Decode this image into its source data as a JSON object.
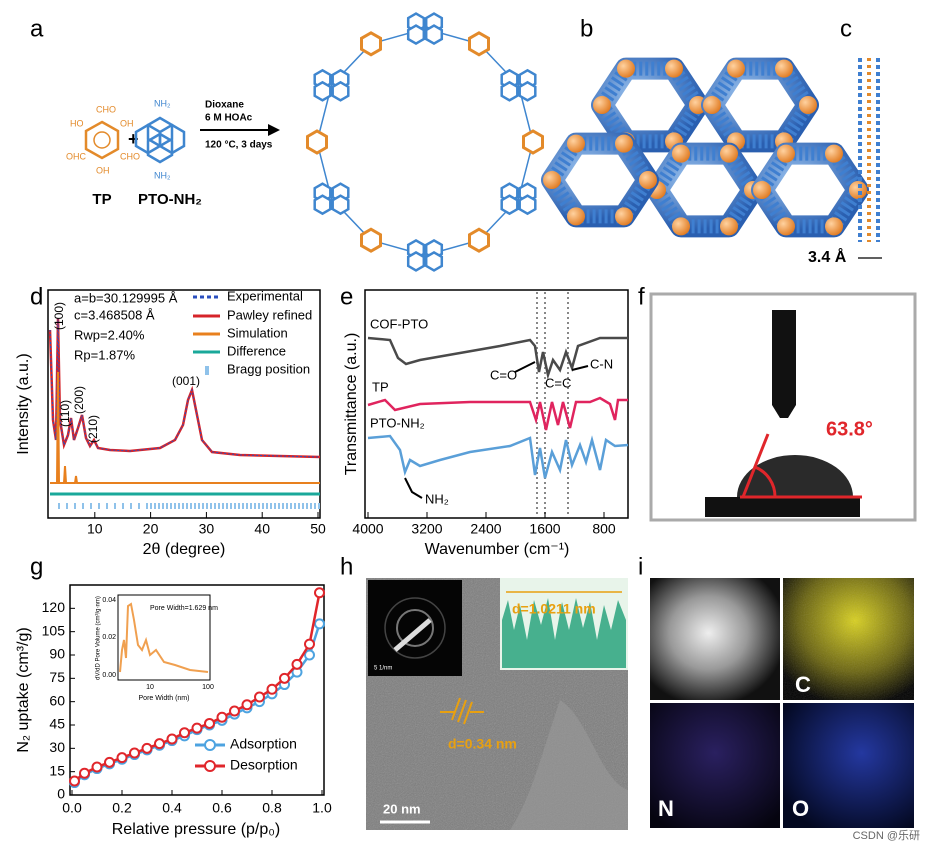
{
  "panel_labels": [
    "a",
    "b",
    "c",
    "d",
    "e",
    "f",
    "g",
    "h",
    "i"
  ],
  "a": {
    "reactants": [
      "TP",
      "PTO-NH₂"
    ],
    "plus": "+",
    "conditions": [
      "Dioxane",
      "6 M HOAc",
      "120 °C, 3 days"
    ],
    "tp_groups": [
      "CHO",
      "OH",
      "HO",
      "OHC",
      "CHO",
      "OH"
    ],
    "pto_groups": [
      "NH₂",
      "NH₂"
    ]
  },
  "c": {
    "spacing": "3.4 Å"
  },
  "d": {
    "xlabel": "2θ (degree)",
    "ylabel": "Intensity (a.u.)",
    "xticks": [
      10,
      20,
      30,
      40,
      50
    ],
    "lattice": [
      "a=b=30.129995 Å",
      "c=3.468508 Å",
      "Rwp=2.40%",
      "Rp=1.87%"
    ],
    "legend": [
      "Experimental",
      "Pawley refined",
      "Simulation",
      "Difference",
      "Bragg position"
    ],
    "peaks": [
      "(100)",
      "(110)",
      "(200)",
      "(210)",
      "(001)"
    ]
  },
  "e": {
    "xlabel": "Wavenumber (cm⁻¹)",
    "ylabel": "Transmittance (a.u.)",
    "xticks": [
      4000,
      3200,
      2400,
      1600,
      800
    ],
    "samples": [
      "COF-PTO",
      "TP",
      "PTO-NH₂"
    ],
    "bonds": [
      "C=O",
      "C=C",
      "C-N",
      "NH₂"
    ]
  },
  "f": {
    "angle": "63.8°"
  },
  "g": {
    "type": "line",
    "xlabel": "Relative pressure (p/p₀)",
    "ylabel": "N₂ uptake (cm³/g)",
    "xlim": [
      0,
      1
    ],
    "ylim": [
      0,
      135
    ],
    "xticks": [
      {
        "value": 0,
        "label": "0.0"
      },
      {
        "value": 0.2,
        "label": "0.2"
      },
      {
        "value": 0.4,
        "label": "0.4"
      },
      {
        "value": 0.6,
        "label": "0.6"
      },
      {
        "value": 0.8,
        "label": "0.8"
      },
      {
        "value": 1,
        "label": "1.0"
      }
    ],
    "yticks": [
      0,
      15,
      30,
      45,
      60,
      75,
      90,
      105,
      120
    ],
    "x": [
      0.01,
      0.05,
      0.1,
      0.15,
      0.2,
      0.25,
      0.3,
      0.35,
      0.4,
      0.45,
      0.5,
      0.55,
      0.6,
      0.65,
      0.7,
      0.75,
      0.8,
      0.85,
      0.9,
      0.95,
      0.99
    ],
    "series": [
      {
        "name": "Adsorption",
        "color": "#4da3e0",
        "values": [
          8,
          13,
          17,
          20,
          23,
          26,
          29,
          32,
          35,
          38,
          42,
          45,
          48,
          52,
          56,
          60,
          65,
          71,
          79,
          90,
          110
        ]
      },
      {
        "name": "Desorption",
        "color": "#e0262b",
        "values": [
          9,
          14,
          18,
          21,
          24,
          27,
          30,
          33,
          36,
          40,
          43,
          46,
          50,
          54,
          58,
          63,
          68,
          75,
          84,
          97,
          130
        ]
      }
    ],
    "inset": {
      "xlabel": "Pore Width (nm)",
      "ylabel": "dV/dD Pore Volume (cm³/g·nm)",
      "note": "Pore Width=1.629 nm",
      "xticks": [
        "10",
        "100"
      ],
      "yticks": [
        "0.00",
        "0.02",
        "0.04"
      ]
    }
  },
  "h": {
    "scale": "20 nm",
    "d_lattice": "d=0.34 nm",
    "d_profile": "d=1.0211 nm",
    "saed_scale": "5 1/nm"
  },
  "i": {
    "elements": [
      "C",
      "N",
      "O"
    ]
  },
  "watermark": "CSDN @乐研"
}
